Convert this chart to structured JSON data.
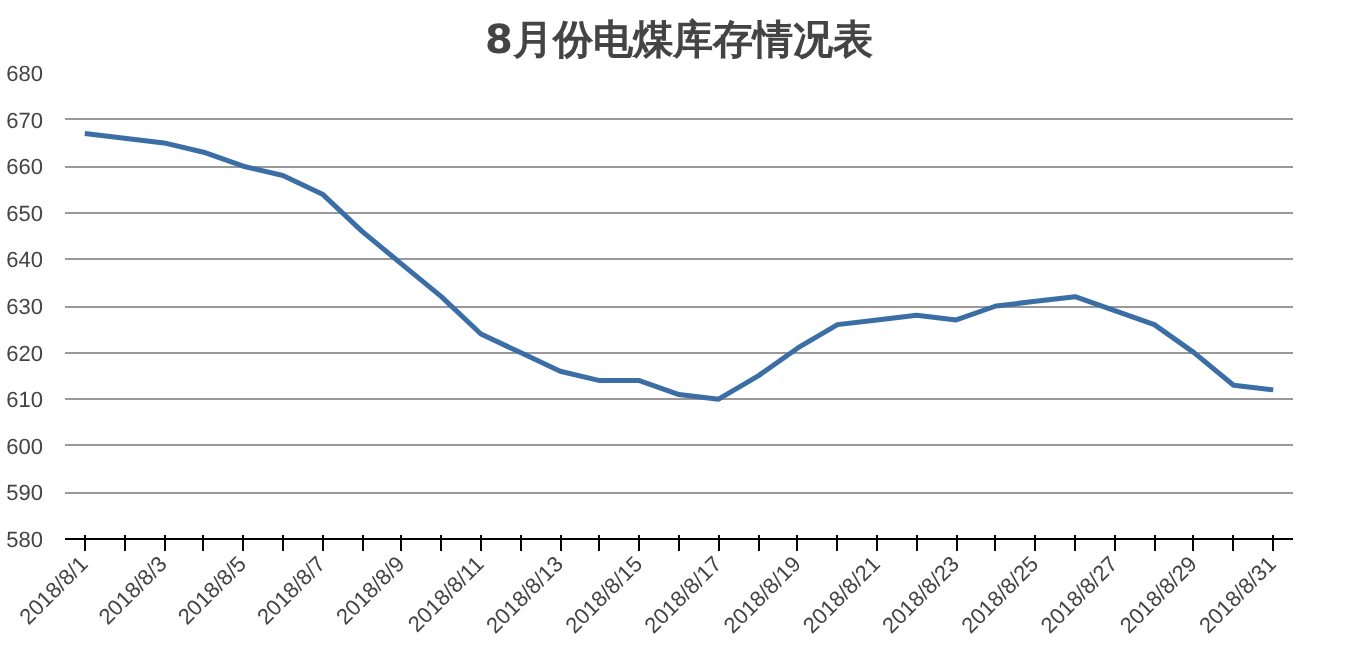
{
  "chart_data": {
    "type": "line",
    "title": "8月份电煤库存情况表",
    "categories": [
      "2018/8/1",
      null,
      "2018/8/3",
      null,
      "2018/8/5",
      null,
      "2018/8/7",
      null,
      "2018/8/9",
      null,
      "2018/8/11",
      null,
      "2018/8/13",
      null,
      "2018/8/15",
      null,
      "2018/8/17",
      null,
      "2018/8/19",
      null,
      "2018/8/21",
      null,
      "2018/8/23",
      null,
      "2018/8/25",
      null,
      "2018/8/27",
      null,
      "2018/8/29",
      null,
      "2018/8/31"
    ],
    "series": [
      {
        "color": "#3a6ea5",
        "values": [
          667,
          666,
          665,
          663,
          660,
          658,
          654,
          646,
          639,
          632,
          624,
          620,
          616,
          614,
          614,
          611,
          610,
          615,
          621,
          626,
          627,
          628,
          627,
          630,
          631,
          632,
          629,
          626,
          620,
          613,
          612
        ]
      }
    ],
    "ylim": [
      580,
      680
    ],
    "yticks": [
      580,
      590,
      600,
      610,
      620,
      630,
      640,
      650,
      660,
      670,
      680
    ],
    "grid": "y",
    "marker": "none",
    "line_style": "solid"
  }
}
